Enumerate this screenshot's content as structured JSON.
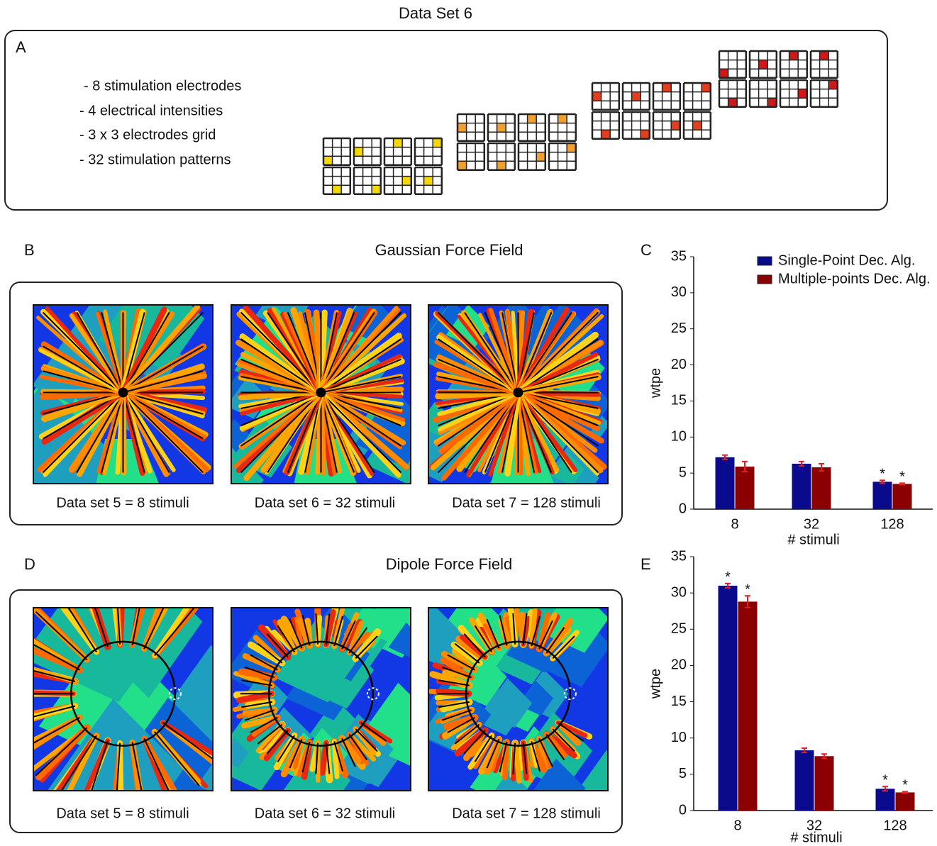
{
  "title": "Data Set 6",
  "panel_a": {
    "label": "A",
    "items": [
      "- 8 stimulation electrodes",
      "- 4 electrical intensities",
      "- 3 x 3 electrodes grid",
      "- 32 stimulation patterns"
    ]
  },
  "panel_b": {
    "label": "B",
    "title": "Gaussian Force Field",
    "captions": [
      "Data set 5 = 8 stimuli",
      "Data set 6 = 32 stimuli",
      "Data set 7 = 128 stimuli"
    ]
  },
  "panel_d": {
    "label": "D",
    "title": "Dipole Force Field",
    "captions": [
      "Data set 5 = 8 stimuli",
      "Data set 6 = 32 stimuli",
      "Data set 7 = 128 stimuli"
    ]
  },
  "chart_data": [
    {
      "type": "bar",
      "panel_label": "C",
      "categories": [
        "8",
        "32",
        "128"
      ],
      "xlabel": "# stimuli",
      "ylabel": "wtpe",
      "ylim": [
        0,
        35
      ],
      "yticks": [
        0,
        5,
        10,
        15,
        20,
        25,
        30,
        35
      ],
      "legend": "upper right",
      "series": [
        {
          "name": "Single-Point Dec. Alg.",
          "color": "#0a0a8c",
          "values": [
            7.2,
            6.3,
            3.8
          ],
          "errors": [
            0.3,
            0.3,
            0.2
          ],
          "annotations": [
            null,
            null,
            "*"
          ]
        },
        {
          "name": "Multiple-points Dec. Alg.",
          "color": "#8b0000",
          "values": [
            5.9,
            5.8,
            3.5
          ],
          "errors": [
            0.7,
            0.5,
            0.1
          ],
          "annotations": [
            null,
            null,
            "*"
          ]
        }
      ]
    },
    {
      "type": "bar",
      "panel_label": "E",
      "categories": [
        "8",
        "32",
        "128"
      ],
      "xlabel": "# stimuli",
      "ylabel": "wtpe",
      "ylim": [
        0,
        35
      ],
      "yticks": [
        0,
        5,
        10,
        15,
        20,
        25,
        30,
        35
      ],
      "series": [
        {
          "color": "#0a0a8c",
          "values": [
            31,
            8.3,
            3
          ],
          "errors": [
            0.3,
            0.3,
            0.3
          ],
          "annotations": [
            "*",
            null,
            "*"
          ]
        },
        {
          "color": "#8b0000",
          "values": [
            28.8,
            7.5,
            2.5
          ],
          "errors": [
            0.8,
            0.3,
            0.1
          ],
          "annotations": [
            "*",
            null,
            "*"
          ]
        }
      ]
    }
  ]
}
